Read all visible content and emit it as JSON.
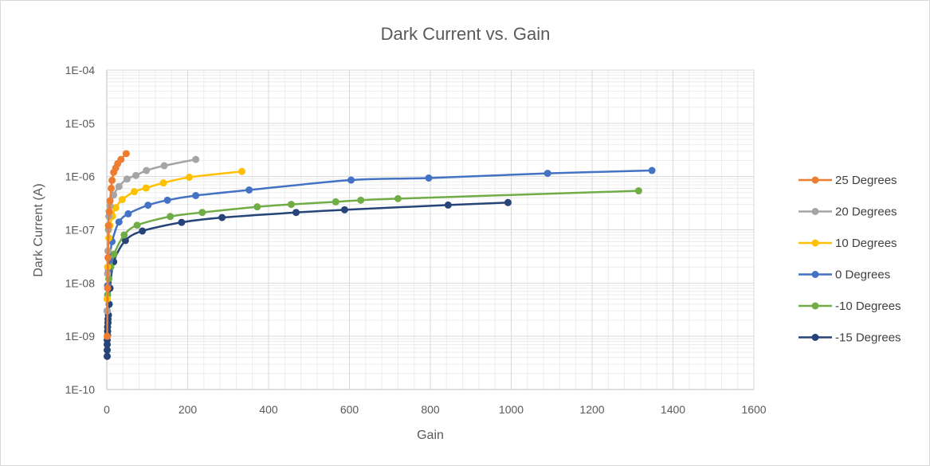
{
  "chart_data": {
    "type": "line",
    "title": "Dark Current vs. Gain",
    "xlabel": "Gain",
    "ylabel": "Dark Current (A)",
    "xlim": [
      0,
      1600
    ],
    "xticks": [
      "0",
      "200",
      "400",
      "600",
      "800",
      "1000",
      "1200",
      "1400",
      "1600"
    ],
    "ylim": [
      1e-10,
      0.0001
    ],
    "yscale": "log",
    "yticks": [
      "1E-10",
      "1E-09",
      "1E-08",
      "1E-07",
      "1E-06",
      "1E-05",
      "1E-04"
    ],
    "grid": true,
    "legend_position": "right",
    "series": [
      {
        "name": "25 Degrees",
        "color": "#ed7d31",
        "points": [
          [
            1,
            1e-09
          ],
          [
            2,
            8e-09
          ],
          [
            3,
            3e-08
          ],
          [
            4,
            1.2e-07
          ],
          [
            6,
            2.2e-07
          ],
          [
            8,
            3.5e-07
          ],
          [
            11,
            6e-07
          ],
          [
            13,
            8.5e-07
          ],
          [
            17,
            1.2e-06
          ],
          [
            22,
            1.45e-06
          ],
          [
            27,
            1.75e-06
          ],
          [
            35,
            2.1e-06
          ],
          [
            48,
            2.7e-06
          ]
        ]
      },
      {
        "name": "20 Degrees",
        "color": "#a5a5a5",
        "points": [
          [
            1,
            3e-09
          ],
          [
            2,
            1.5e-08
          ],
          [
            3,
            4e-08
          ],
          [
            4,
            1e-07
          ],
          [
            5,
            1.8e-07
          ],
          [
            8,
            2.8e-07
          ],
          [
            17,
            4.5e-07
          ],
          [
            30,
            6.5e-07
          ],
          [
            50,
            9e-07
          ],
          [
            72,
            1.05e-06
          ],
          [
            98,
            1.3e-06
          ],
          [
            142,
            1.6e-06
          ],
          [
            220,
            2.1e-06
          ]
        ]
      },
      {
        "name": "10 Degrees",
        "color": "#ffc000",
        "points": [
          [
            1,
            5e-09
          ],
          [
            2,
            2e-08
          ],
          [
            3,
            4e-08
          ],
          [
            5,
            7e-08
          ],
          [
            8,
            1.2e-07
          ],
          [
            14,
            1.8e-07
          ],
          [
            22,
            2.6e-07
          ],
          [
            38,
            3.7e-07
          ],
          [
            68,
            5.2e-07
          ],
          [
            97,
            6.1e-07
          ],
          [
            140,
            7.6e-07
          ],
          [
            204,
            9.7e-07
          ],
          [
            334,
            1.25e-06
          ]
        ]
      },
      {
        "name": "0 Degrees",
        "color": "#4472c4",
        "points": [
          [
            1,
            3e-09
          ],
          [
            2,
            9e-09
          ],
          [
            4,
            1.8e-08
          ],
          [
            7,
            2.7e-08
          ],
          [
            13,
            6e-08
          ],
          [
            30,
            1.4e-07
          ],
          [
            53,
            2e-07
          ],
          [
            102,
            2.9e-07
          ],
          [
            150,
            3.6e-07
          ],
          [
            220,
            4.4e-07
          ],
          [
            352,
            5.6e-07
          ],
          [
            604,
            8.6e-07
          ],
          [
            796,
            9.4e-07
          ],
          [
            1090,
            1.15e-06
          ],
          [
            1348,
            1.3e-06
          ]
        ]
      },
      {
        "name": "-10 Degrees",
        "color": "#70ad47",
        "points": [
          [
            1,
            3e-09
          ],
          [
            2,
            6e-09
          ],
          [
            5,
            1.2e-08
          ],
          [
            10,
            2e-08
          ],
          [
            18,
            3.5e-08
          ],
          [
            43,
            8e-08
          ],
          [
            75,
            1.22e-07
          ],
          [
            157,
            1.78e-07
          ],
          [
            236,
            2.12e-07
          ],
          [
            372,
            2.7e-07
          ],
          [
            456,
            3e-07
          ],
          [
            566,
            3.35e-07
          ],
          [
            628,
            3.6e-07
          ],
          [
            720,
            3.85e-07
          ],
          [
            1315,
            5.4e-07
          ]
        ]
      },
      {
        "name": "-15 Degrees",
        "color": "#264478",
        "points": [
          [
            1,
            4.2e-10
          ],
          [
            1,
            5.5e-10
          ],
          [
            1,
            7e-10
          ],
          [
            1,
            8.5e-10
          ],
          [
            2,
            1.05e-09
          ],
          [
            2,
            1.25e-09
          ],
          [
            2,
            1.5e-09
          ],
          [
            3,
            1.8e-09
          ],
          [
            3,
            2.1e-09
          ],
          [
            4,
            2.5e-09
          ],
          [
            6,
            4e-09
          ],
          [
            8,
            8e-09
          ],
          [
            17,
            2.5e-08
          ],
          [
            46,
            6.3e-08
          ],
          [
            88,
            9.5e-08
          ],
          [
            185,
            1.38e-07
          ],
          [
            285,
            1.7e-07
          ],
          [
            468,
            2.12e-07
          ],
          [
            588,
            2.38e-07
          ],
          [
            844,
            2.92e-07
          ],
          [
            992,
            3.25e-07
          ]
        ]
      }
    ]
  }
}
